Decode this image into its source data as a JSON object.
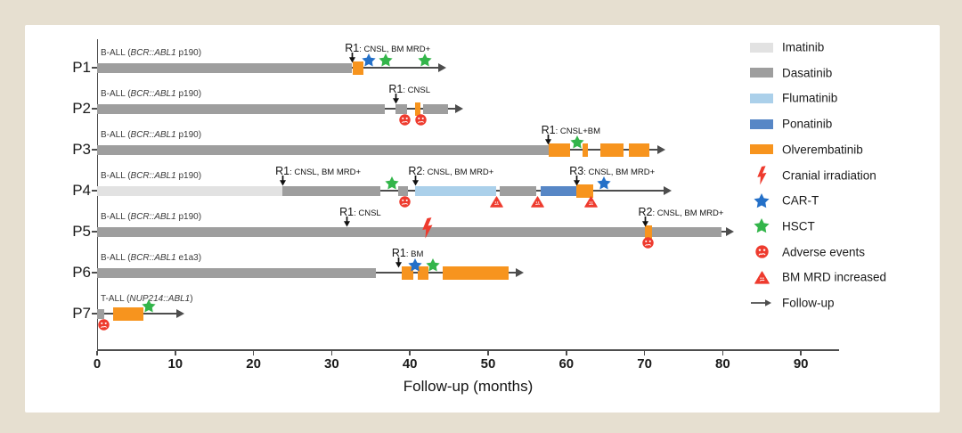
{
  "frame": {
    "background": "#e6dfd0",
    "panel_background": "#ffffff"
  },
  "chart_data": {
    "type": "swimmer-timeline",
    "title": "",
    "xlabel": "Follow-up (months)",
    "x_ticks": [
      0,
      10,
      20,
      30,
      40,
      50,
      60,
      70,
      80,
      90
    ],
    "xlim": [
      0,
      94.5
    ],
    "grid": false,
    "legend_position": "right",
    "line_color": "#4d4d4d",
    "drug_colors": {
      "Imatinib": "#e2e2e2",
      "Dasatinib": "#9e9e9e",
      "Flumatinib": "#abd0ea",
      "Ponatinib": "#5787c6",
      "Olverembatinib": "#f7941e"
    },
    "event_colors": {
      "cranial_irradiation": "#ee3b2e",
      "car_t": "#2470c8",
      "hsct": "#33b54a",
      "adverse_event": "#ee3b2e",
      "bm_mrd_increased": "#ee3b2e"
    },
    "legend": [
      {
        "kind": "swatch",
        "icon": "imatinib-swatch",
        "label": "Imatinib",
        "color": "#e2e2e2"
      },
      {
        "kind": "swatch",
        "icon": "dasatinib-swatch",
        "label": "Dasatinib",
        "color": "#9e9e9e"
      },
      {
        "kind": "swatch",
        "icon": "flumatinib-swatch",
        "label": "Flumatinib",
        "color": "#abd0ea"
      },
      {
        "kind": "swatch",
        "icon": "ponatinib-swatch",
        "label": "Ponatinib",
        "color": "#5787c6"
      },
      {
        "kind": "swatch",
        "icon": "olverembatinib-swatch",
        "label": "Olverembatinib",
        "color": "#f7941e"
      },
      {
        "kind": "icon",
        "icon": "cranial-irradiation-icon",
        "label": "Cranial irradiation"
      },
      {
        "kind": "icon",
        "icon": "car-t-icon",
        "label": "CAR-T"
      },
      {
        "kind": "icon",
        "icon": "hsct-icon",
        "label": "HSCT"
      },
      {
        "kind": "icon",
        "icon": "adverse-events-icon",
        "label": "Adverse events"
      },
      {
        "kind": "icon",
        "icon": "bm-mrd-increased-icon",
        "label": "BM MRD increased"
      },
      {
        "kind": "icon",
        "icon": "follow-up-icon",
        "label": "Follow-up"
      }
    ],
    "patients": [
      {
        "id": "P1",
        "diagnosis": {
          "prefix": "B-ALL (",
          "gene": "BCR::ABL1",
          "suffix": " p190)"
        },
        "follow_up_end": 43.8,
        "segments": [
          {
            "drug": "Dasatinib",
            "start": 0,
            "end": 32.6
          },
          {
            "drug": "Olverembatinib",
            "start": 32.7,
            "end": 34.1
          }
        ],
        "relapses": [
          {
            "label": "R1",
            "detail": ": CNSL, BM MRD+",
            "month": 32.6
          }
        ],
        "events": [
          {
            "type": "car_t",
            "month": 34.7
          },
          {
            "type": "hsct",
            "month": 36.9
          },
          {
            "type": "hsct",
            "month": 41.9
          }
        ]
      },
      {
        "id": "P2",
        "diagnosis": {
          "prefix": "B-ALL (",
          "gene": "BCR::ABL1",
          "suffix": " p190)"
        },
        "follow_up_end": 46.0,
        "segments": [
          {
            "drug": "Dasatinib",
            "start": 0,
            "end": 36.8
          },
          {
            "drug": "Dasatinib",
            "start": 38.2,
            "end": 39.6
          },
          {
            "drug": "Olverembatinib",
            "start": 40.7,
            "end": 41.3
          },
          {
            "drug": "Dasatinib",
            "start": 41.7,
            "end": 44.9
          }
        ],
        "relapses": [
          {
            "label": "R1",
            "detail": ": CNSL",
            "month": 38.2
          }
        ],
        "events": [
          {
            "type": "adverse_event",
            "month": 39.3
          },
          {
            "type": "adverse_event",
            "month": 41.4
          }
        ]
      },
      {
        "id": "P3",
        "diagnosis": {
          "prefix": "B-ALL (",
          "gene": "BCR::ABL1",
          "suffix": " p190)"
        },
        "follow_up_end": 71.9,
        "segments": [
          {
            "drug": "Dasatinib",
            "start": 0,
            "end": 57.7
          },
          {
            "drug": "Olverembatinib",
            "start": 57.8,
            "end": 60.5
          },
          {
            "drug": "Olverembatinib",
            "start": 62.1,
            "end": 62.7
          },
          {
            "drug": "Olverembatinib",
            "start": 64.4,
            "end": 67.3
          },
          {
            "drug": "Olverembatinib",
            "start": 68.0,
            "end": 70.6
          }
        ],
        "relapses": [
          {
            "label": "R1",
            "detail": ": CNSL+BM",
            "month": 57.7
          }
        ],
        "events": [
          {
            "type": "hsct",
            "month": 61.4
          }
        ]
      },
      {
        "id": "P4",
        "diagnosis": {
          "prefix": "B-ALL (",
          "gene": "BCR::ABL1",
          "suffix": " p190)"
        },
        "follow_up_end": 72.7,
        "segments": [
          {
            "drug": "Imatinib",
            "start": 0,
            "end": 23.7
          },
          {
            "drug": "Dasatinib",
            "start": 23.7,
            "end": 36.2
          },
          {
            "drug": "Dasatinib",
            "start": 38.5,
            "end": 39.7
          },
          {
            "drug": "Flumatinib",
            "start": 40.7,
            "end": 51.0
          },
          {
            "drug": "Dasatinib",
            "start": 51.5,
            "end": 56.1
          },
          {
            "drug": "Ponatinib",
            "start": 56.7,
            "end": 61.3
          },
          {
            "drug": "Olverembatinib",
            "start": 61.3,
            "end": 63.4
          }
        ],
        "relapses": [
          {
            "label": "R1",
            "detail": ": CNSL, BM MRD+",
            "month": 23.7
          },
          {
            "label": "R2",
            "detail": ": CNSL, BM MRD+",
            "month": 40.7
          },
          {
            "label": "R3",
            "detail": ": CNSL, BM MRD+",
            "month": 61.3
          }
        ],
        "events": [
          {
            "type": "hsct",
            "month": 37.7
          },
          {
            "type": "adverse_event",
            "month": 39.3
          },
          {
            "type": "bm_mrd_increased",
            "month": 51.1
          },
          {
            "type": "bm_mrd_increased",
            "month": 56.3
          },
          {
            "type": "bm_mrd_increased",
            "month": 63.2
          },
          {
            "type": "car_t",
            "month": 64.8
          }
        ]
      },
      {
        "id": "P5",
        "diagnosis": {
          "prefix": "B-ALL (",
          "gene": "BCR::ABL1",
          "suffix": " p190)"
        },
        "follow_up_end": 80.6,
        "segments": [
          {
            "drug": "Dasatinib",
            "start": 0,
            "end": 79.8
          },
          {
            "drug": "Olverembatinib",
            "start": 70.1,
            "end": 71.0
          }
        ],
        "relapses": [
          {
            "label": "R1",
            "detail": ": CNSL",
            "month": 31.9
          },
          {
            "label": "R2",
            "detail": ": CNSL, BM MRD+",
            "month": 70.1
          }
        ],
        "events": [
          {
            "type": "cranial_irradiation",
            "month": 42.2
          },
          {
            "type": "adverse_event",
            "month": 70.4
          }
        ]
      },
      {
        "id": "P6",
        "diagnosis": {
          "prefix": "B-ALL (",
          "gene": "BCR::ABL1",
          "suffix": " e1a3)"
        },
        "follow_up_end": 53.8,
        "segments": [
          {
            "drug": "Dasatinib",
            "start": 0,
            "end": 35.6
          },
          {
            "drug": "Olverembatinib",
            "start": 39.0,
            "end": 40.4
          },
          {
            "drug": "Olverembatinib",
            "start": 41.0,
            "end": 42.4
          },
          {
            "drug": "Olverembatinib",
            "start": 44.2,
            "end": 52.6
          }
        ],
        "relapses": [
          {
            "label": "R1",
            "detail": ": BM",
            "month": 38.6
          }
        ],
        "events": [
          {
            "type": "car_t",
            "month": 40.7
          },
          {
            "type": "hsct",
            "month": 42.9
          }
        ]
      },
      {
        "id": "P7",
        "diagnosis": {
          "prefix": "T-ALL (",
          "gene": "NUP214::ABL1",
          "suffix": ")"
        },
        "follow_up_end": 10.4,
        "segments": [
          {
            "drug": "Dasatinib",
            "start": 0,
            "end": 0.9
          },
          {
            "drug": "Olverembatinib",
            "start": 2.0,
            "end": 5.9
          }
        ],
        "relapses": [],
        "events": [
          {
            "type": "adverse_event",
            "month": 0.9
          },
          {
            "type": "hsct",
            "month": 6.6
          }
        ]
      }
    ]
  }
}
